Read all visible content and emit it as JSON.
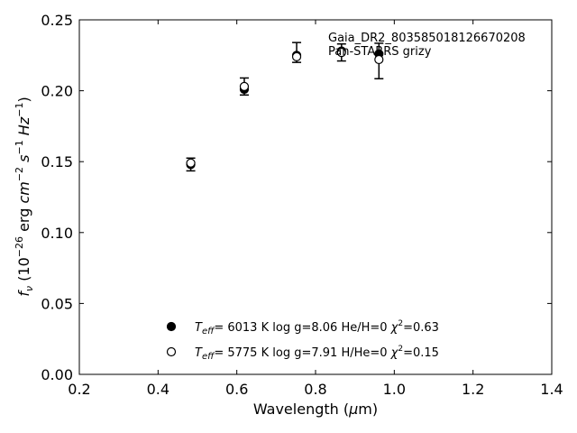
{
  "chart_data": {
    "type": "scatter",
    "xlabel": "Wavelength (μm)",
    "ylabel": "f_ν (10^-26 erg cm^-2 s^-1 Hz^-1)",
    "xlim": [
      0.2,
      1.4
    ],
    "ylim": [
      0.0,
      0.25
    ],
    "xticks": [
      "0.2",
      "0.4",
      "0.6",
      "0.8",
      "1.0",
      "1.2",
      "1.4"
    ],
    "yticks": [
      "0.00",
      "0.05",
      "0.10",
      "0.15",
      "0.20",
      "0.25"
    ],
    "annotation": [
      "Gaia_DR2_803585018126670208",
      "Pan-STARRS grizy"
    ],
    "observed": {
      "x": [
        0.483,
        0.619,
        0.752,
        0.866,
        0.961
      ],
      "y": [
        0.148,
        0.203,
        0.227,
        0.227,
        0.221
      ],
      "yerr": [
        0.0045,
        0.006,
        0.007,
        0.006,
        0.0125
      ]
    },
    "series": [
      {
        "marker": "filled",
        "legend_label": "T_eff=  6013 K  log g=8.06  He/H=0  χ²=0.63",
        "x": [
          0.483,
          0.619,
          0.752,
          0.866,
          0.961
        ],
        "y": [
          0.148,
          0.201,
          0.225,
          0.228,
          0.226
        ]
      },
      {
        "marker": "open",
        "legend_label": "T_eff=  5775 K  log g=7.91  H/He=0  χ²=0.15",
        "x": [
          0.483,
          0.619,
          0.752,
          0.866,
          0.961
        ],
        "y": [
          0.149,
          0.203,
          0.224,
          0.227,
          0.222
        ]
      }
    ],
    "legend": [
      {
        "marker": "filled",
        "teff": "6013 K",
        "logg": "log g=8.06",
        "comp": "He/H=0",
        "chi2": "=0.63"
      },
      {
        "marker": "open",
        "teff": "5775 K",
        "logg": "log g=7.91",
        "comp": "H/He=0",
        "chi2": "=0.15"
      }
    ],
    "legend_placement": "lower-center",
    "grid": false
  }
}
